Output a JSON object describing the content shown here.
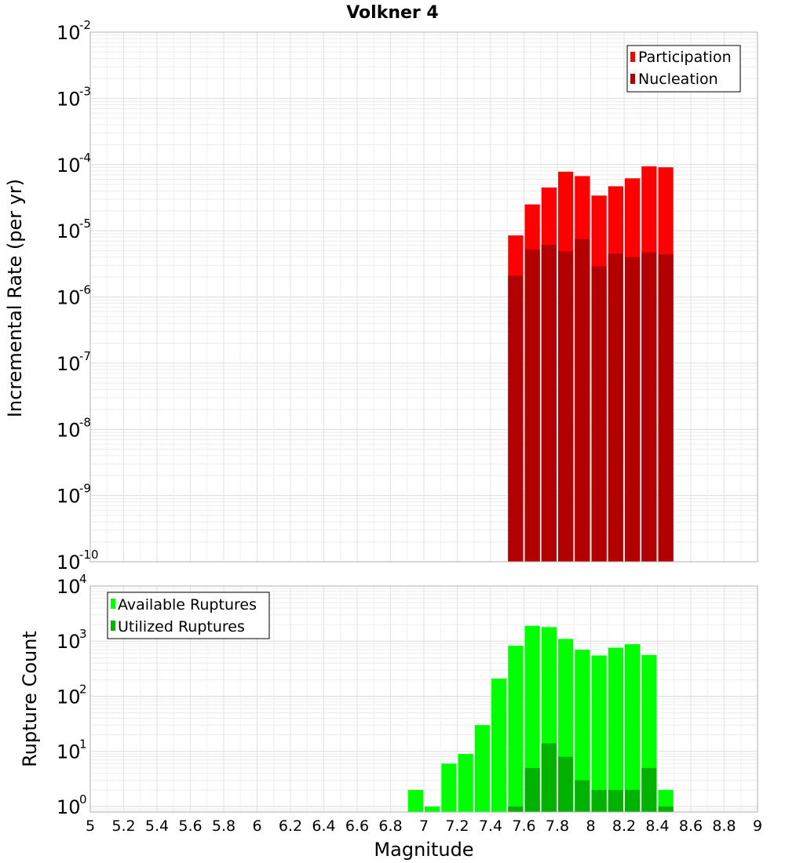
{
  "title": "Volkner 4",
  "colors": {
    "participation": "#ff0000",
    "nucleation": "#b20000",
    "available": "#00ff00",
    "utilized": "#00b200",
    "grid": "#e6e6e6",
    "frame": "#b0b0b0"
  },
  "chart_data": [
    {
      "id": "rates",
      "type": "bar",
      "yscale": "log",
      "ylabel": "Incremental Rate (per yr)",
      "xlabel": "",
      "xlim": [
        5,
        9
      ],
      "ylim_exp": [
        -10,
        -2
      ],
      "ytick_exponents": [
        -10,
        -9,
        -8,
        -7,
        -6,
        -5,
        -4,
        -3,
        -2
      ],
      "ytick_labels": [
        "-10",
        "-9",
        "-8",
        "-7",
        "-6",
        "-5",
        "-4",
        "-3",
        "-2"
      ],
      "bin_width": 0.1,
      "legend": {
        "position": "top-right",
        "entries": [
          "Participation",
          "Nucleation"
        ]
      },
      "series": [
        {
          "name": "Participation",
          "color": "#ff0000",
          "x": [
            7.55,
            7.65,
            7.75,
            7.85,
            7.95,
            8.05,
            8.15,
            8.25,
            8.35,
            8.45
          ],
          "values": [
            8.5e-06,
            2.5e-05,
            4.5e-05,
            7.8e-05,
            6.7e-05,
            3.4e-05,
            4.7e-05,
            6.2e-05,
            9.4e-05,
            9.1e-05
          ]
        },
        {
          "name": "Nucleation",
          "color": "#b20000",
          "x": [
            7.55,
            7.65,
            7.75,
            7.85,
            7.95,
            8.05,
            8.15,
            8.25,
            8.35,
            8.45
          ],
          "values": [
            2.1e-06,
            5.2e-06,
            6.1e-06,
            4.9e-06,
            7.5e-06,
            2.9e-06,
            4.5e-06,
            4e-06,
            4.7e-06,
            4.4e-06
          ]
        }
      ]
    },
    {
      "id": "counts",
      "type": "bar",
      "yscale": "log",
      "ylabel": "Rupture Count",
      "xlabel": "Magnitude",
      "xlim": [
        5,
        9
      ],
      "ylim_exp": [
        -0.1,
        4
      ],
      "ytick_exponents": [
        0,
        1,
        2,
        3,
        4
      ],
      "ytick_labels": [
        "0",
        "1",
        "2",
        "3",
        "4"
      ],
      "xticks": [
        "5",
        "5.2",
        "5.4",
        "5.6",
        "5.8",
        "6",
        "6.2",
        "6.4",
        "6.6",
        "6.8",
        "7",
        "7.2",
        "7.4",
        "7.6",
        "7.8",
        "8",
        "8.2",
        "8.4",
        "8.6",
        "8.8",
        "9"
      ],
      "bin_width": 0.1,
      "legend": {
        "position": "top-left",
        "entries": [
          "Available Ruptures",
          "Utilized Ruptures"
        ]
      },
      "series": [
        {
          "name": "Available Ruptures",
          "color": "#00ff00",
          "x": [
            6.95,
            7.05,
            7.15,
            7.25,
            7.35,
            7.45,
            7.55,
            7.65,
            7.75,
            7.85,
            7.95,
            8.05,
            8.15,
            8.25,
            8.35,
            8.45
          ],
          "values": [
            2,
            1,
            6,
            9,
            30,
            210,
            830,
            1900,
            1800,
            1100,
            700,
            550,
            760,
            880,
            560,
            2
          ]
        },
        {
          "name": "Utilized Ruptures",
          "color": "#00b200",
          "x": [
            7.55,
            7.65,
            7.75,
            7.85,
            7.95,
            8.05,
            8.15,
            8.25,
            8.35,
            8.45
          ],
          "values": [
            1,
            5,
            14,
            8,
            3,
            2,
            2,
            2,
            5,
            1
          ]
        }
      ]
    }
  ]
}
